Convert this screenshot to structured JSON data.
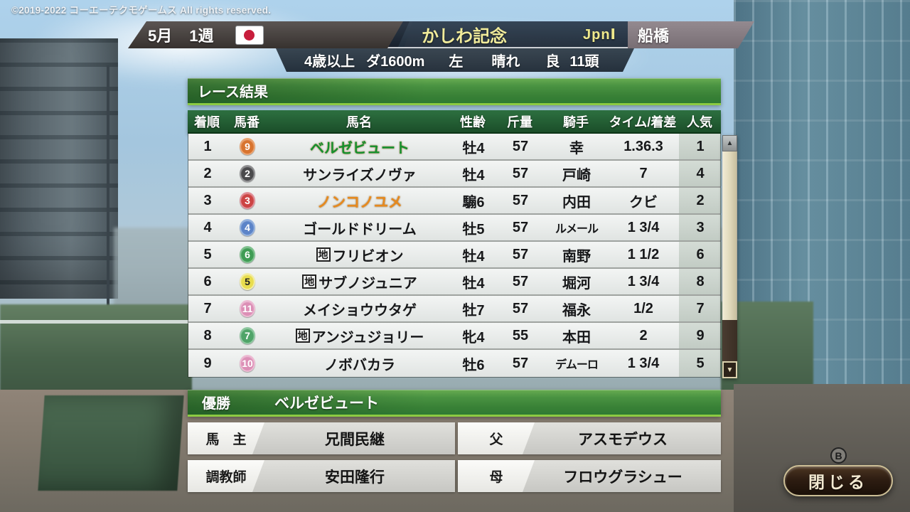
{
  "copyright": "©2019-2022 コーエーテクモゲームス All rights reserved.",
  "header": {
    "month": "5月",
    "week": "1週",
    "flag_icon": "japan-flag",
    "race_name": "かしわ記念",
    "grade": "JpnⅠ",
    "venue": "船橋",
    "conditions": [
      "4歳以上",
      "ダ1600m",
      "左",
      "晴れ",
      "良",
      "11頭"
    ]
  },
  "result_panel": {
    "title": "レース結果",
    "columns": [
      "着順",
      "馬番",
      "馬名",
      "性齢",
      "斤量",
      "騎手",
      "タイム/着差",
      "人気"
    ],
    "rows": [
      {
        "finish": "1",
        "number": "9",
        "badge_bg": "#d8742f",
        "badge_ring": "#eaa471",
        "badge_fg": "#ffffff",
        "prefix": "",
        "name": "ベルゼビュート",
        "name_color": "#14912c",
        "sex_age": "牡4",
        "weight": "57",
        "jockey": "幸",
        "time_margin": "1.36.3",
        "popularity": "1"
      },
      {
        "finish": "2",
        "number": "2",
        "badge_bg": "#4a4a4c",
        "badge_ring": "#919193",
        "badge_fg": "#ffffff",
        "prefix": "",
        "name": "サンライズノヴァ",
        "name_color": "",
        "sex_age": "牡4",
        "weight": "57",
        "jockey": "戸崎",
        "time_margin": "7",
        "popularity": "4"
      },
      {
        "finish": "3",
        "number": "3",
        "badge_bg": "#cc4444",
        "badge_ring": "#e0909a",
        "badge_fg": "#ffffff",
        "prefix": "",
        "name": "ノンコノユメ",
        "name_color": "#e8891c",
        "sex_age": "騸6",
        "weight": "57",
        "jockey": "内田",
        "time_margin": "クビ",
        "popularity": "2"
      },
      {
        "finish": "4",
        "number": "4",
        "badge_bg": "#5c84c8",
        "badge_ring": "#94b2de",
        "badge_fg": "#ffffff",
        "prefix": "",
        "name": "ゴールドドリーム",
        "name_color": "",
        "sex_age": "牡5",
        "weight": "57",
        "jockey": "ルメール",
        "time_margin": "1 3/4",
        "popularity": "3"
      },
      {
        "finish": "5",
        "number": "6",
        "badge_bg": "#3f9c54",
        "badge_ring": "#80c28f",
        "badge_fg": "#ffffff",
        "prefix": "地",
        "name": "フリビオン",
        "name_color": "",
        "sex_age": "牡4",
        "weight": "57",
        "jockey": "南野",
        "time_margin": "1 1/2",
        "popularity": "6"
      },
      {
        "finish": "6",
        "number": "5",
        "badge_bg": "#e8dd4e",
        "badge_ring": "#f3eda6",
        "badge_fg": "#222222",
        "prefix": "地",
        "name": "サブノジュニア",
        "name_color": "",
        "sex_age": "牡4",
        "weight": "57",
        "jockey": "堀河",
        "time_margin": "1 3/4",
        "popularity": "8"
      },
      {
        "finish": "7",
        "number": "11",
        "badge_bg": "#dc8fb6",
        "badge_ring": "#edbbd3",
        "badge_fg": "#ffffff",
        "prefix": "",
        "name": "メイショウウタゲ",
        "name_color": "",
        "sex_age": "牡7",
        "weight": "57",
        "jockey": "福永",
        "time_margin": "1/2",
        "popularity": "7"
      },
      {
        "finish": "8",
        "number": "7",
        "badge_bg": "#4fa468",
        "badge_ring": "#8fc8a0",
        "badge_fg": "#ffffff",
        "prefix": "地",
        "name": "アンジュジョリー",
        "name_color": "",
        "sex_age": "牝4",
        "weight": "55",
        "jockey": "本田",
        "time_margin": "2",
        "popularity": "9"
      },
      {
        "finish": "9",
        "number": "10",
        "badge_bg": "#dc8fb6",
        "badge_ring": "#edbbd3",
        "badge_fg": "#ffffff",
        "prefix": "",
        "name": "ノボバカラ",
        "name_color": "",
        "sex_age": "牡6",
        "weight": "57",
        "jockey": "デムーロ",
        "time_margin": "1 3/4",
        "popularity": "5"
      }
    ],
    "scrollbar": {
      "up_glyph": "▲",
      "down_glyph": "▼"
    }
  },
  "winner_bar": {
    "label": "優勝",
    "name": "ベルゼビュート"
  },
  "details": [
    {
      "label": "馬　主",
      "value": "兄間民継"
    },
    {
      "label": "父",
      "value": "アスモデウス"
    },
    {
      "label": "調教師",
      "value": "安田隆行"
    },
    {
      "label": "母",
      "value": "フロウグラシュー"
    }
  ],
  "close_button": {
    "key": "B",
    "label": "閉じる"
  },
  "colors": {
    "bar_green_dark": "#2f7a33",
    "bar_green_light": "#68ac52",
    "accent_lime": "#8ccb42",
    "table_head_green": "#1b4e29",
    "race_name_yellow": "#f1ec9b",
    "winner_name_green": "#14912c",
    "highlight_orange": "#e8891c"
  }
}
